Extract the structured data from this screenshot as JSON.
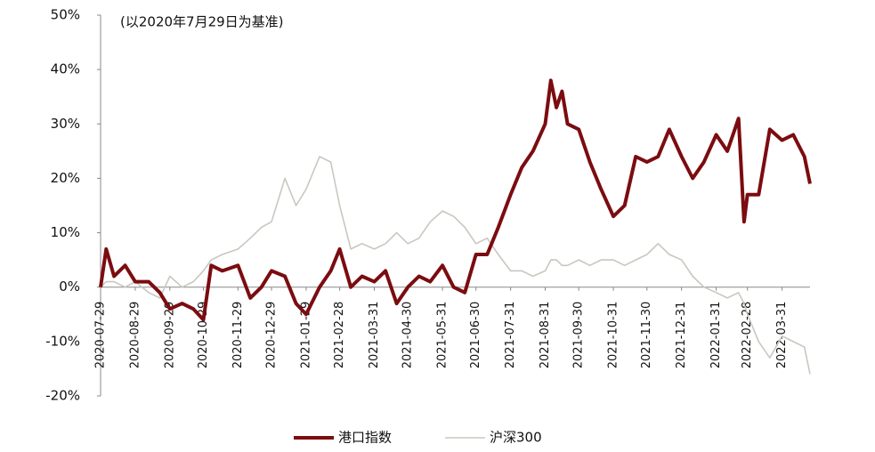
{
  "chart_data": {
    "type": "line",
    "subtitle": "(以2020年7月29日为基准)",
    "x": [
      "2020-07-29",
      "2020-08-03",
      "2020-08-10",
      "2020-08-20",
      "2020-08-29",
      "2020-09-10",
      "2020-09-20",
      "2020-09-29",
      "2020-10-10",
      "2020-10-20",
      "2020-10-29",
      "2020-11-05",
      "2020-11-15",
      "2020-11-29",
      "2020-12-10",
      "2020-12-20",
      "2020-12-29",
      "2021-01-10",
      "2021-01-20",
      "2021-01-29",
      "2021-02-10",
      "2021-02-20",
      "2021-02-28",
      "2021-03-10",
      "2021-03-20",
      "2021-03-31",
      "2021-04-10",
      "2021-04-20",
      "2021-04-30",
      "2021-05-10",
      "2021-05-20",
      "2021-05-31",
      "2021-06-10",
      "2021-06-20",
      "2021-06-30",
      "2021-07-10",
      "2021-07-20",
      "2021-07-31",
      "2021-08-10",
      "2021-08-20",
      "2021-08-31",
      "2021-09-05",
      "2021-09-10",
      "2021-09-15",
      "2021-09-20",
      "2021-09-30",
      "2021-10-10",
      "2021-10-20",
      "2021-10-31",
      "2021-11-10",
      "2021-11-20",
      "2021-11-30",
      "2021-12-10",
      "2021-12-20",
      "2021-12-31",
      "2022-01-10",
      "2022-01-20",
      "2022-01-31",
      "2022-02-10",
      "2022-02-20",
      "2022-02-25",
      "2022-02-28",
      "2022-03-10",
      "2022-03-20",
      "2022-03-31",
      "2022-04-10",
      "2022-04-20",
      "2022-04-25"
    ],
    "series": [
      {
        "name": "港口指数",
        "color": "#7b0c10",
        "values": [
          0,
          7,
          2,
          4,
          1,
          1,
          -1,
          -4,
          -3,
          -4,
          -6,
          4,
          3,
          4,
          -2,
          0,
          3,
          2,
          -3,
          -5,
          0,
          3,
          7,
          0,
          2,
          1,
          3,
          -3,
          0,
          2,
          1,
          4,
          0,
          -1,
          6,
          6,
          11,
          17,
          22,
          25,
          30,
          38,
          33,
          36,
          30,
          29,
          23,
          18,
          13,
          15,
          24,
          23,
          24,
          29,
          24,
          20,
          23,
          28,
          25,
          31,
          12,
          17,
          17,
          29,
          27,
          28,
          24,
          19
        ]
      },
      {
        "name": "沪深300",
        "color": "#c8c8c0",
        "values": [
          0,
          1,
          1,
          0,
          1,
          -1,
          -2,
          2,
          0,
          1,
          3,
          5,
          6,
          7,
          9,
          11,
          12,
          20,
          15,
          18,
          24,
          23,
          15,
          7,
          8,
          7,
          8,
          10,
          8,
          9,
          12,
          14,
          13,
          11,
          8,
          9,
          6,
          3,
          3,
          2,
          3,
          5,
          5,
          4,
          4,
          5,
          4,
          5,
          5,
          4,
          5,
          6,
          8,
          6,
          5,
          2,
          0,
          -1,
          -2,
          -1,
          -3,
          -5,
          -10,
          -13,
          -9,
          -10,
          -11,
          -16
        ]
      }
    ],
    "xlim": [
      "2020-07-29",
      "2022-04-25"
    ],
    "xticks": [
      "2020-07-29",
      "2020-08-29",
      "2020-09-29",
      "2020-10-29",
      "2020-11-29",
      "2020-12-29",
      "2021-01-29",
      "2021-02-28",
      "2021-03-31",
      "2021-04-30",
      "2021-05-31",
      "2021-06-30",
      "2021-07-31",
      "2021-08-31",
      "2021-09-30",
      "2021-10-31",
      "2021-11-30",
      "2021-12-31",
      "2022-01-31",
      "2022-02-28",
      "2022-03-31"
    ],
    "ylim": [
      -20,
      50
    ],
    "yticks": [
      {
        "value": -20,
        "label": "-20%"
      },
      {
        "value": -10,
        "label": "-10%"
      },
      {
        "value": 0,
        "label": "0%"
      },
      {
        "value": 10,
        "label": "10%"
      },
      {
        "value": 20,
        "label": "20%"
      },
      {
        "value": 30,
        "label": "30%"
      },
      {
        "value": 40,
        "label": "40%"
      },
      {
        "value": 50,
        "label": "50%"
      }
    ],
    "legend": "bottom"
  }
}
